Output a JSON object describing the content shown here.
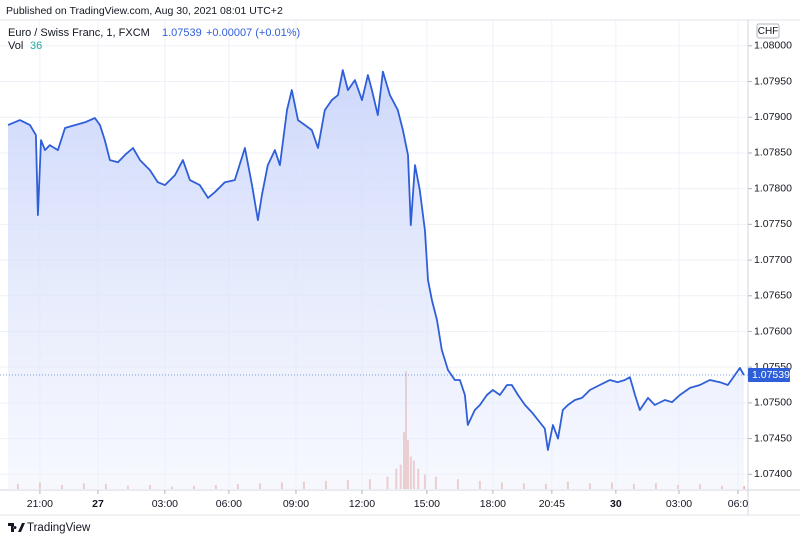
{
  "publish_note": "Published on TradingView.com, Aug 30, 2021 08:01 UTC+2",
  "footer_brand": "TradingView",
  "header": {
    "symbol": "Euro / Swiss Franc, 1, FXCM",
    "price": "1.07539",
    "change": "+0.00007 (+0.01%)"
  },
  "chart_data": {
    "type": "line",
    "title": "Euro / Swiss Franc, 1, FXCM",
    "currency": "CHF",
    "color": "#2f5fd8",
    "x": [
      -1.45,
      -0.91,
      -0.45,
      -0.18,
      -0.09,
      0.05,
      0.23,
      0.45,
      0.82,
      1.14,
      1.59,
      2.05,
      2.5,
      2.73,
      2.95,
      3.18,
      3.55,
      3.86,
      4.23,
      4.55,
      5,
      5.36,
      5.68,
      6.14,
      6.5,
      6.82,
      7.27,
      7.64,
      7.95,
      8.41,
      8.86,
      9.32,
      9.64,
      9.91,
      10.09,
      10.36,
      10.68,
      10.91,
      11.23,
      11.45,
      11.73,
      12.05,
      12.36,
      12.64,
      12.95,
      13.27,
      13.55,
      13.77,
      14,
      14.32,
      14.64,
      14.91,
      15.09,
      15.36,
      15.59,
      15.91,
      16.27,
      16.5,
      16.73,
      16.86,
      17.05,
      17.27,
      17.5,
      17.64,
      17.82,
      18.05,
      18.27,
      18.55,
      18.86,
      19.09,
      19.32,
      19.45,
      19.77,
      20,
      20.32,
      20.59,
      20.91,
      21.23,
      21.45,
      21.73,
      22.05,
      22.36,
      22.64,
      22.95,
      23.09,
      23.32,
      23.55,
      23.77,
      24,
      24.32,
      24.64,
      25,
      25.45,
      25.91,
      26.27,
      26.59,
      26.82,
      27.05,
      27.27,
      27.64,
      27.95,
      28.41,
      28.73,
      29.09,
      29.55,
      30,
      30.45,
      30.91,
      31.27,
      31.59,
      31.82,
      32
    ],
    "values": [
      1.07889,
      1.07896,
      1.07889,
      1.07875,
      1.07763,
      1.07868,
      1.07854,
      1.07861,
      1.07854,
      1.07885,
      1.07889,
      1.07893,
      1.07899,
      1.07889,
      1.07868,
      1.0784,
      1.07837,
      1.07847,
      1.07857,
      1.0784,
      1.07826,
      1.07809,
      1.07805,
      1.07819,
      1.0784,
      1.07812,
      1.07805,
      1.07787,
      1.07795,
      1.07809,
      1.07812,
      1.07857,
      1.07805,
      1.07756,
      1.07791,
      1.07833,
      1.07854,
      1.07833,
      1.0791,
      1.07938,
      1.07896,
      1.07889,
      1.07882,
      1.07857,
      1.0791,
      1.07924,
      1.07931,
      1.07966,
      1.07938,
      1.07952,
      1.07924,
      1.07959,
      1.07938,
      1.07903,
      1.07964,
      1.07931,
      1.0791,
      1.07882,
      1.07847,
      1.07749,
      1.07833,
      1.07798,
      1.07742,
      1.07672,
      1.07644,
      1.07616,
      1.07574,
      1.07546,
      1.07532,
      1.07532,
      1.07511,
      1.07469,
      1.0749,
      1.07497,
      1.07511,
      1.07518,
      1.07511,
      1.07525,
      1.07525,
      1.07511,
      1.07497,
      1.07487,
      1.07476,
      1.07464,
      1.07434,
      1.07469,
      1.0745,
      1.0749,
      1.07497,
      1.07504,
      1.07507,
      1.07518,
      1.07525,
      1.07532,
      1.07529,
      1.07532,
      1.07536,
      1.07511,
      1.0749,
      1.07507,
      1.07497,
      1.07504,
      1.07501,
      1.07511,
      1.07521,
      1.07525,
      1.07532,
      1.07529,
      1.07525,
      1.07539,
      1.07549,
      1.07539
    ],
    "xlim": [
      -1.45,
      32.05
    ],
    "ylim": [
      1.07378,
      1.08039
    ],
    "xticks": [
      {
        "value": 0,
        "label": "21:00"
      },
      {
        "value": 2.64,
        "label": "27"
      },
      {
        "value": 5.68,
        "label": "03:00"
      },
      {
        "value": 8.59,
        "label": "06:00"
      },
      {
        "value": 11.64,
        "label": "09:00"
      },
      {
        "value": 14.64,
        "label": "12:00"
      },
      {
        "value": 17.59,
        "label": "15:00"
      },
      {
        "value": 20.59,
        "label": "18:00"
      },
      {
        "value": 23.27,
        "label": "20:45"
      },
      {
        "value": 26.18,
        "label": "30"
      },
      {
        "value": 29.05,
        "label": "03:00"
      },
      {
        "value": 31.73,
        "label": "06:0"
      }
    ],
    "yticks": [
      {
        "value": 1.08,
        "label": "1.08000"
      },
      {
        "value": 1.0795,
        "label": "1.07950"
      },
      {
        "value": 1.079,
        "label": "1.07900"
      },
      {
        "value": 1.0785,
        "label": "1.07850"
      },
      {
        "value": 1.078,
        "label": "1.07800"
      },
      {
        "value": 1.0775,
        "label": "1.07750"
      },
      {
        "value": 1.077,
        "label": "1.07700"
      },
      {
        "value": 1.0765,
        "label": "1.07650"
      },
      {
        "value": 1.076,
        "label": "1.07600"
      },
      {
        "value": 1.0755,
        "label": "1.07550"
      },
      {
        "value": 1.075,
        "label": "1.07500"
      },
      {
        "value": 1.0745,
        "label": "1.07450"
      },
      {
        "value": 1.074,
        "label": "1.07400"
      }
    ],
    "grid": true,
    "volume": {
      "name": "Vol",
      "color": "#e8a8a0",
      "ylim": [
        0,
        1600
      ],
      "x": [
        -1,
        0,
        1,
        2,
        3,
        4,
        5,
        6,
        7,
        8,
        9,
        10,
        11,
        12,
        13,
        14,
        15,
        15.8,
        16.2,
        16.4,
        16.55,
        16.64,
        16.73,
        16.86,
        17,
        17.2,
        17.5,
        18,
        19,
        20,
        21,
        22,
        23,
        24,
        25,
        26,
        27,
        28,
        29,
        30,
        31,
        32
      ],
      "values": [
        60,
        80,
        50,
        70,
        60,
        40,
        50,
        30,
        40,
        50,
        60,
        70,
        80,
        90,
        100,
        110,
        120,
        150,
        250,
        300,
        700,
        1450,
        600,
        400,
        350,
        250,
        180,
        150,
        120,
        100,
        80,
        70,
        60,
        90,
        70,
        80,
        60,
        70,
        50,
        60,
        40,
        36
      ]
    }
  }
}
